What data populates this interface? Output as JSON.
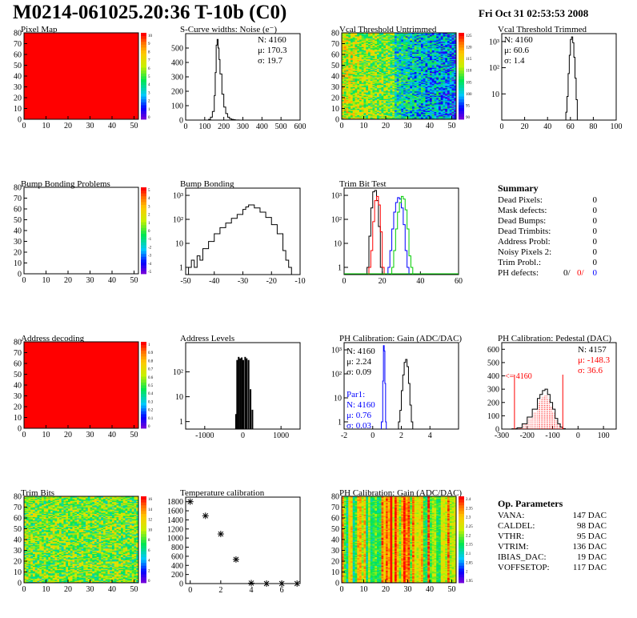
{
  "header": {
    "title": "M0214-061025.20:36 T-10b (C0)",
    "date": "Fri Oct 31 02:53:53 2008"
  },
  "panels": {
    "pixel_map": {
      "title": "Pixel Map",
      "zticks": [
        "10",
        "9",
        "8",
        "7",
        "6",
        "5",
        "4",
        "3",
        "2",
        "1",
        "0"
      ]
    },
    "noise": {
      "title": "S-Curve widths: Noise (e⁻)",
      "stats": [
        "N: 4160",
        "μ: 170.3",
        "σ: 19.7"
      ]
    },
    "vcal_untrimmed": {
      "title": "Vcal Threshold Untrimmed",
      "zticks": [
        "125",
        "120",
        "115",
        "110",
        "105",
        "100",
        "95",
        "90"
      ]
    },
    "vcal_trimmed": {
      "title": "Vcal Threshold Trimmed",
      "stats": [
        "N: 4160",
        "μ: 60.6",
        "σ:  1.4"
      ]
    },
    "bump_problems": {
      "title": "Bump Bonding Problems",
      "zticks": [
        "5",
        "4",
        "3",
        "2",
        "1",
        "0",
        "-1",
        "-2",
        "-3",
        "-4",
        "-5"
      ]
    },
    "bump_bonding": {
      "title": "Bump Bonding"
    },
    "trim_bit_test": {
      "title": "Trim Bit Test"
    },
    "address_decoding": {
      "title": "Address decoding",
      "zticks": [
        "1",
        "0.9",
        "0.8",
        "0.7",
        "0.6",
        "0.5",
        "0.4",
        "0.3",
        "0.2",
        "0.1",
        "0"
      ]
    },
    "address_levels": {
      "title": "Address Levels"
    },
    "ph_gain": {
      "title": "PH Calibration: Gain (ADC/DAC)",
      "stats": [
        "N: 4160",
        "μ: 2.24",
        "σ: 0.09"
      ],
      "par1": [
        "Par1:",
        "N: 4160",
        "μ: 0.76",
        "σ: 0.03"
      ]
    },
    "ph_pedestal": {
      "title": "PH Calibration: Pedestal (DAC)",
      "stats": [
        "N: 4157",
        "μ: -148.3",
        "σ: 36.6"
      ],
      "marker": "<= 4160"
    },
    "trim_bits": {
      "title": "Trim Bits",
      "zticks": [
        "16",
        "14",
        "12",
        "10",
        "8",
        "6",
        "4",
        "2",
        "0"
      ]
    },
    "temperature": {
      "title": "Temperature calibration"
    },
    "ph_gain_map": {
      "title": "PH Calibration: Gain (ADC/DAC)",
      "zticks": [
        "2.4",
        "2.35",
        "2.3",
        "2.25",
        "2.2",
        "2.15",
        "2.1",
        "2.05",
        "2",
        "1.95"
      ]
    }
  },
  "summary": {
    "title": "Summary",
    "rows": [
      {
        "label": "Dead Pixels:",
        "value": "0"
      },
      {
        "label": "Mask defects:",
        "value": "0"
      },
      {
        "label": "Dead Bumps:",
        "value": "0"
      },
      {
        "label": "Dead Trimbits:",
        "value": "0"
      },
      {
        "label": "Address Probl:",
        "value": "0"
      },
      {
        "label": "Noisy Pixels 2:",
        "value": "0"
      },
      {
        "label": "Trim Probl.:",
        "value": "0"
      }
    ],
    "ph_defects": {
      "label": "PH defects:",
      "v1": "0/",
      "v2": "0/",
      "v3": "0"
    }
  },
  "op_params": {
    "title": "Op. Parameters",
    "rows": [
      {
        "label": "VANA:",
        "value": "147 DAC"
      },
      {
        "label": "CALDEL:",
        "value": "98 DAC"
      },
      {
        "label": "VTHR:",
        "value": "95 DAC"
      },
      {
        "label": "VTRIM:",
        "value": "136 DAC"
      },
      {
        "label": "IBIAS_DAC:",
        "value": "19 DAC"
      },
      {
        "label": "VOFFSETOP:",
        "value": "117 DAC"
      }
    ]
  },
  "chart_data": [
    {
      "id": "pixel_map",
      "type": "heatmap",
      "title": "Pixel Map",
      "x_range": [
        0,
        52
      ],
      "y_range": [
        0,
        80
      ],
      "z_range": [
        0,
        10
      ],
      "uniform_value": 10,
      "xticks": [
        0,
        10,
        20,
        30,
        40,
        50
      ],
      "yticks": [
        0,
        10,
        20,
        30,
        40,
        50,
        60,
        70,
        80
      ]
    },
    {
      "id": "noise",
      "type": "line",
      "title": "S-Curve widths: Noise (e⁻)",
      "x_range": [
        0,
        600
      ],
      "y_range": [
        0,
        600
      ],
      "xticks": [
        0,
        100,
        200,
        300,
        400,
        500,
        600
      ],
      "yticks": [
        0,
        100,
        200,
        300,
        400,
        500
      ],
      "x": [
        110,
        120,
        130,
        140,
        150,
        155,
        160,
        165,
        170,
        175,
        180,
        190,
        200,
        210,
        220,
        230,
        240,
        250,
        260,
        280
      ],
      "y": [
        0,
        5,
        20,
        60,
        170,
        330,
        520,
        560,
        500,
        420,
        320,
        180,
        90,
        45,
        20,
        10,
        5,
        3,
        1,
        0
      ]
    },
    {
      "id": "vcal_untrimmed",
      "type": "heatmap",
      "title": "Vcal Threshold Untrimmed",
      "x_range": [
        0,
        52
      ],
      "y_range": [
        0,
        80
      ],
      "z_range": [
        88,
        128
      ],
      "xticks": [
        0,
        10,
        20,
        30,
        40,
        50
      ],
      "yticks": [
        0,
        10,
        20,
        30,
        40,
        50,
        60,
        70,
        80
      ]
    },
    {
      "id": "vcal_trimmed",
      "type": "line",
      "log_y": true,
      "title": "Vcal Threshold Trimmed",
      "x_range": [
        0,
        100
      ],
      "y_range": [
        1,
        2000
      ],
      "xticks": [
        0,
        20,
        40,
        60,
        80,
        100
      ],
      "yticks": [
        "10",
        "10²",
        "10³"
      ],
      "x": [
        55,
        56,
        57,
        58,
        59,
        60,
        61,
        62,
        63,
        64,
        65,
        66,
        67
      ],
      "y": [
        1,
        2,
        8,
        60,
        300,
        1200,
        1500,
        900,
        250,
        40,
        6,
        1,
        1
      ]
    },
    {
      "id": "bump_problems",
      "type": "heatmap",
      "title": "Bump Bonding Problems",
      "x_range": [
        0,
        52
      ],
      "y_range": [
        0,
        80
      ],
      "z_range": [
        -5,
        5
      ],
      "empty": true,
      "xticks": [
        0,
        10,
        20,
        30,
        40,
        50
      ],
      "yticks": [
        0,
        10,
        20,
        30,
        40,
        50,
        60,
        70,
        80
      ]
    },
    {
      "id": "bump_bonding",
      "type": "line",
      "log_y": true,
      "title": "Bump Bonding",
      "x_range": [
        -50,
        -10
      ],
      "y_range": [
        0.5,
        2000
      ],
      "xticks": [
        -50,
        -40,
        -30,
        -20,
        -10
      ],
      "yticks": [
        "1",
        "10",
        "10²",
        "10³"
      ],
      "x": [
        -49,
        -48,
        -47,
        -46,
        -45,
        -44,
        -42,
        -40,
        -38,
        -36,
        -34,
        -32,
        -30,
        -29,
        -28,
        -26,
        -24,
        -22,
        -20,
        -18,
        -16,
        -15,
        -14
      ],
      "y": [
        1,
        2,
        1,
        3,
        2,
        6,
        12,
        25,
        45,
        70,
        110,
        160,
        260,
        330,
        400,
        300,
        200,
        120,
        60,
        25,
        5,
        2,
        1
      ]
    },
    {
      "id": "trim_bit_test",
      "type": "line",
      "log_y": true,
      "title": "Trim Bit Test",
      "x_range": [
        0,
        60
      ],
      "y_range": [
        0.5,
        2000
      ],
      "xticks": [
        0,
        20,
        40,
        60
      ],
      "yticks": [
        "1",
        "10",
        "10²",
        "10³"
      ],
      "series": [
        {
          "color": "#000000",
          "x": [
            12,
            13,
            14,
            15,
            16,
            17,
            18,
            19
          ],
          "y": [
            1,
            20,
            300,
            1400,
            1600,
            600,
            50,
            1
          ]
        },
        {
          "color": "#ff0000",
          "x": [
            13,
            14,
            15,
            16,
            17,
            18,
            19,
            20
          ],
          "y": [
            1,
            5,
            80,
            600,
            900,
            400,
            30,
            1
          ]
        },
        {
          "color": "#0000ff",
          "x": [
            23,
            24,
            25,
            26,
            27,
            28,
            29,
            30,
            31,
            32,
            33
          ],
          "y": [
            1,
            5,
            40,
            200,
            500,
            800,
            700,
            300,
            60,
            5,
            1
          ]
        },
        {
          "color": "#00cc00",
          "x": [
            25,
            26,
            27,
            28,
            29,
            30,
            31,
            32,
            33,
            34,
            35
          ],
          "y": [
            1,
            5,
            40,
            200,
            500,
            900,
            700,
            250,
            40,
            3,
            1
          ]
        }
      ]
    },
    {
      "id": "address_decoding",
      "type": "heatmap",
      "title": "Address decoding",
      "x_range": [
        0,
        52
      ],
      "y_range": [
        0,
        80
      ],
      "z_range": [
        0,
        1
      ],
      "uniform_value": 1,
      "xticks": [
        0,
        10,
        20,
        30,
        40,
        50
      ],
      "yticks": [
        0,
        10,
        20,
        30,
        40,
        50,
        60,
        70,
        80
      ]
    },
    {
      "id": "address_levels",
      "type": "bar",
      "log_y": true,
      "title": "Address Levels",
      "x_range": [
        -1500,
        1500
      ],
      "y_range": [
        0.5,
        1500
      ],
      "xticks": [
        -1000,
        0,
        1000
      ],
      "yticks": [
        "1",
        "10",
        "10²"
      ],
      "x": [
        -180,
        -150,
        -110,
        -70,
        -30,
        10,
        60,
        100,
        150,
        200,
        250
      ],
      "y": [
        2,
        300,
        400,
        350,
        380,
        300,
        400,
        350,
        300,
        20,
        3
      ]
    },
    {
      "id": "ph_gain",
      "type": "line",
      "log_y": true,
      "title": "PH Calibration: Gain (ADC/DAC)",
      "x_range": [
        -2,
        6
      ],
      "y_range": [
        0.5,
        2000
      ],
      "xticks": [
        -2,
        0,
        2,
        4
      ],
      "yticks": [
        "1",
        "10",
        "10²",
        "10³"
      ],
      "series": [
        {
          "color": "#000000",
          "x": [
            1.8,
            1.9,
            2.0,
            2.1,
            2.2,
            2.3,
            2.4,
            2.5,
            2.6,
            2.7
          ],
          "y": [
            1,
            3,
            20,
            90,
            300,
            400,
            200,
            40,
            5,
            1
          ]
        },
        {
          "color": "#0000ff",
          "x": [
            0.6,
            0.7,
            0.75,
            0.8,
            0.85,
            0.9
          ],
          "y": [
            1,
            50,
            1500,
            900,
            40,
            1
          ]
        }
      ]
    },
    {
      "id": "ph_pedestal",
      "type": "line",
      "title": "PH Calibration: Pedestal (DAC)",
      "x_range": [
        -300,
        150
      ],
      "y_range": [
        0,
        650
      ],
      "xticks": [
        -300,
        -200,
        -100,
        0,
        100
      ],
      "yticks": [
        0,
        100,
        200,
        300,
        400,
        500,
        600
      ],
      "x": [
        -260,
        -240,
        -220,
        -200,
        -180,
        -160,
        -150,
        -140,
        -130,
        -120,
        -110,
        -100,
        -90,
        -80,
        -70,
        -60
      ],
      "y": [
        2,
        10,
        40,
        90,
        150,
        230,
        260,
        290,
        300,
        260,
        200,
        150,
        80,
        40,
        15,
        3
      ]
    },
    {
      "id": "trim_bits",
      "type": "heatmap",
      "title": "Trim Bits",
      "x_range": [
        0,
        52
      ],
      "y_range": [
        0,
        80
      ],
      "z_range": [
        0,
        16
      ],
      "xticks": [
        0,
        10,
        20,
        30,
        40,
        50
      ],
      "yticks": [
        0,
        10,
        20,
        30,
        40,
        50,
        60,
        70,
        80
      ]
    },
    {
      "id": "temperature",
      "type": "scatter",
      "title": "Temperature calibration",
      "x_range": [
        -0.3,
        7.2
      ],
      "y_range": [
        0,
        1900
      ],
      "xticks": [
        0,
        2,
        4,
        6
      ],
      "yticks": [
        0,
        200,
        400,
        600,
        800,
        1000,
        1200,
        1400,
        1600,
        1800
      ],
      "x": [
        0,
        1,
        2,
        3,
        4,
        5,
        6,
        7
      ],
      "y": [
        1800,
        1490,
        1090,
        530,
        10,
        0,
        0,
        0
      ]
    },
    {
      "id": "ph_gain_map",
      "type": "heatmap",
      "title": "PH Calibration: Gain (ADC/DAC)",
      "x_range": [
        0,
        52
      ],
      "y_range": [
        0,
        80
      ],
      "z_range": [
        1.93,
        2.42
      ],
      "xticks": [
        0,
        10,
        20,
        30,
        40,
        50
      ],
      "yticks": [
        0,
        10,
        20,
        30,
        40,
        50,
        60,
        70,
        80
      ]
    }
  ]
}
